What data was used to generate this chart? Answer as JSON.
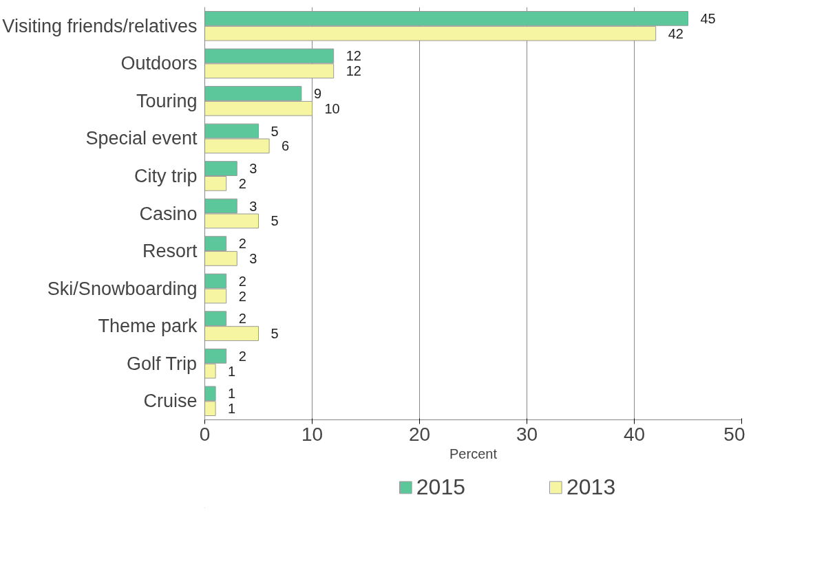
{
  "chart_data": {
    "type": "bar",
    "orientation": "horizontal",
    "xlabel": "Percent",
    "categories": [
      "Visiting friends/relatives",
      "Outdoors",
      "Touring",
      "Special event",
      "City trip",
      "Casino",
      "Resort",
      "Ski/Snowboarding",
      "Theme park",
      "Golf Trip",
      "Cruise"
    ],
    "series": [
      {
        "name": "2015",
        "color": "#5cc79a",
        "values": [
          45,
          12,
          9,
          5,
          3,
          3,
          2,
          2,
          2,
          2,
          1
        ]
      },
      {
        "name": "2013",
        "color": "#f6f6a2",
        "values": [
          42,
          12,
          10,
          6,
          2,
          5,
          3,
          2,
          5,
          1,
          1
        ]
      }
    ],
    "xlim": [
      0,
      50
    ],
    "xticks": [
      0,
      10,
      20,
      30,
      40,
      50
    ],
    "grid": "x",
    "legend": "bottom",
    "data_labels": true
  }
}
